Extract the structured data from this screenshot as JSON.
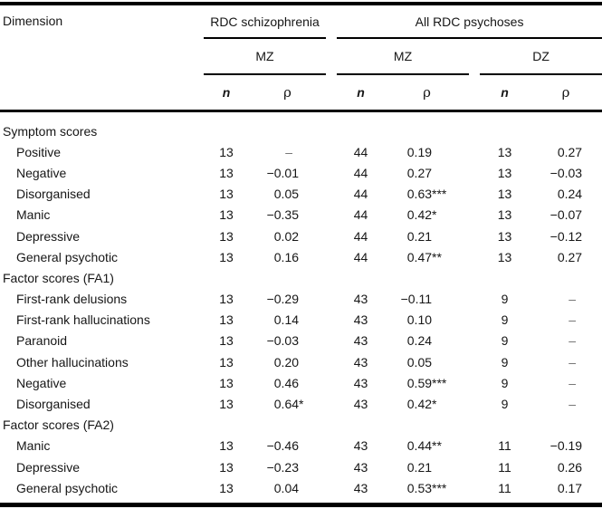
{
  "page": {
    "background": "#ffffff",
    "text_color": "#161616",
    "rule_color": "#000000"
  },
  "table": {
    "dimension_header": "Dimension",
    "groups": [
      {
        "label": "RDC schizophrenia"
      },
      {
        "label": "All RDC psychoses"
      }
    ],
    "subgroups": [
      {
        "label": "MZ",
        "parent": "RDC schizophrenia"
      },
      {
        "label": "MZ",
        "parent": "All RDC psychoses"
      },
      {
        "label": "DZ",
        "parent": "All RDC psychoses"
      }
    ],
    "stat_headers": {
      "n": "n",
      "rho": "ρ"
    },
    "empty_value": "–",
    "sections": [
      {
        "title": "Symptom scores",
        "rows": [
          {
            "label": "Positive",
            "values": [
              "13",
              "–",
              "44",
              "0.19",
              "13",
              "0.27"
            ]
          },
          {
            "label": "Negative",
            "values": [
              "13",
              "−0.01",
              "44",
              "0.27",
              "13",
              "−0.03"
            ]
          },
          {
            "label": "Disorganised",
            "values": [
              "13",
              "0.05",
              "44",
              "0.63***",
              "13",
              "0.24"
            ]
          },
          {
            "label": "Manic",
            "values": [
              "13",
              "−0.35",
              "44",
              "0.42*",
              "13",
              "−0.07"
            ]
          },
          {
            "label": "Depressive",
            "values": [
              "13",
              "0.02",
              "44",
              "0.21",
              "13",
              "−0.12"
            ]
          },
          {
            "label": "General psychotic",
            "values": [
              "13",
              "0.16",
              "44",
              "0.47**",
              "13",
              "0.27"
            ]
          }
        ]
      },
      {
        "title": "Factor scores (FA1)",
        "rows": [
          {
            "label": "First-rank delusions",
            "values": [
              "13",
              "−0.29",
              "43",
              "−0.11",
              "9",
              "–"
            ]
          },
          {
            "label": "First-rank hallucinations",
            "values": [
              "13",
              "0.14",
              "43",
              "0.10",
              "9",
              "–"
            ]
          },
          {
            "label": "Paranoid",
            "values": [
              "13",
              "−0.03",
              "43",
              "0.24",
              "9",
              "–"
            ]
          },
          {
            "label": "Other hallucinations",
            "values": [
              "13",
              "0.20",
              "43",
              "0.05",
              "9",
              "–"
            ]
          },
          {
            "label": "Negative",
            "values": [
              "13",
              "0.46",
              "43",
              "0.59***",
              "9",
              "–"
            ]
          },
          {
            "label": "Disorganised",
            "values": [
              "13",
              "0.64*",
              "43",
              "0.42*",
              "9",
              "–"
            ]
          }
        ]
      },
      {
        "title": "Factor scores (FA2)",
        "rows": [
          {
            "label": "Manic",
            "values": [
              "13",
              "−0.46",
              "43",
              "0.44**",
              "11",
              "−0.19"
            ]
          },
          {
            "label": "Depressive",
            "values": [
              "13",
              "−0.23",
              "43",
              "0.21",
              "11",
              "0.26"
            ]
          },
          {
            "label": "General psychotic",
            "values": [
              "13",
              "0.04",
              "43",
              "0.53***",
              "11",
              "0.17"
            ]
          }
        ]
      }
    ]
  }
}
